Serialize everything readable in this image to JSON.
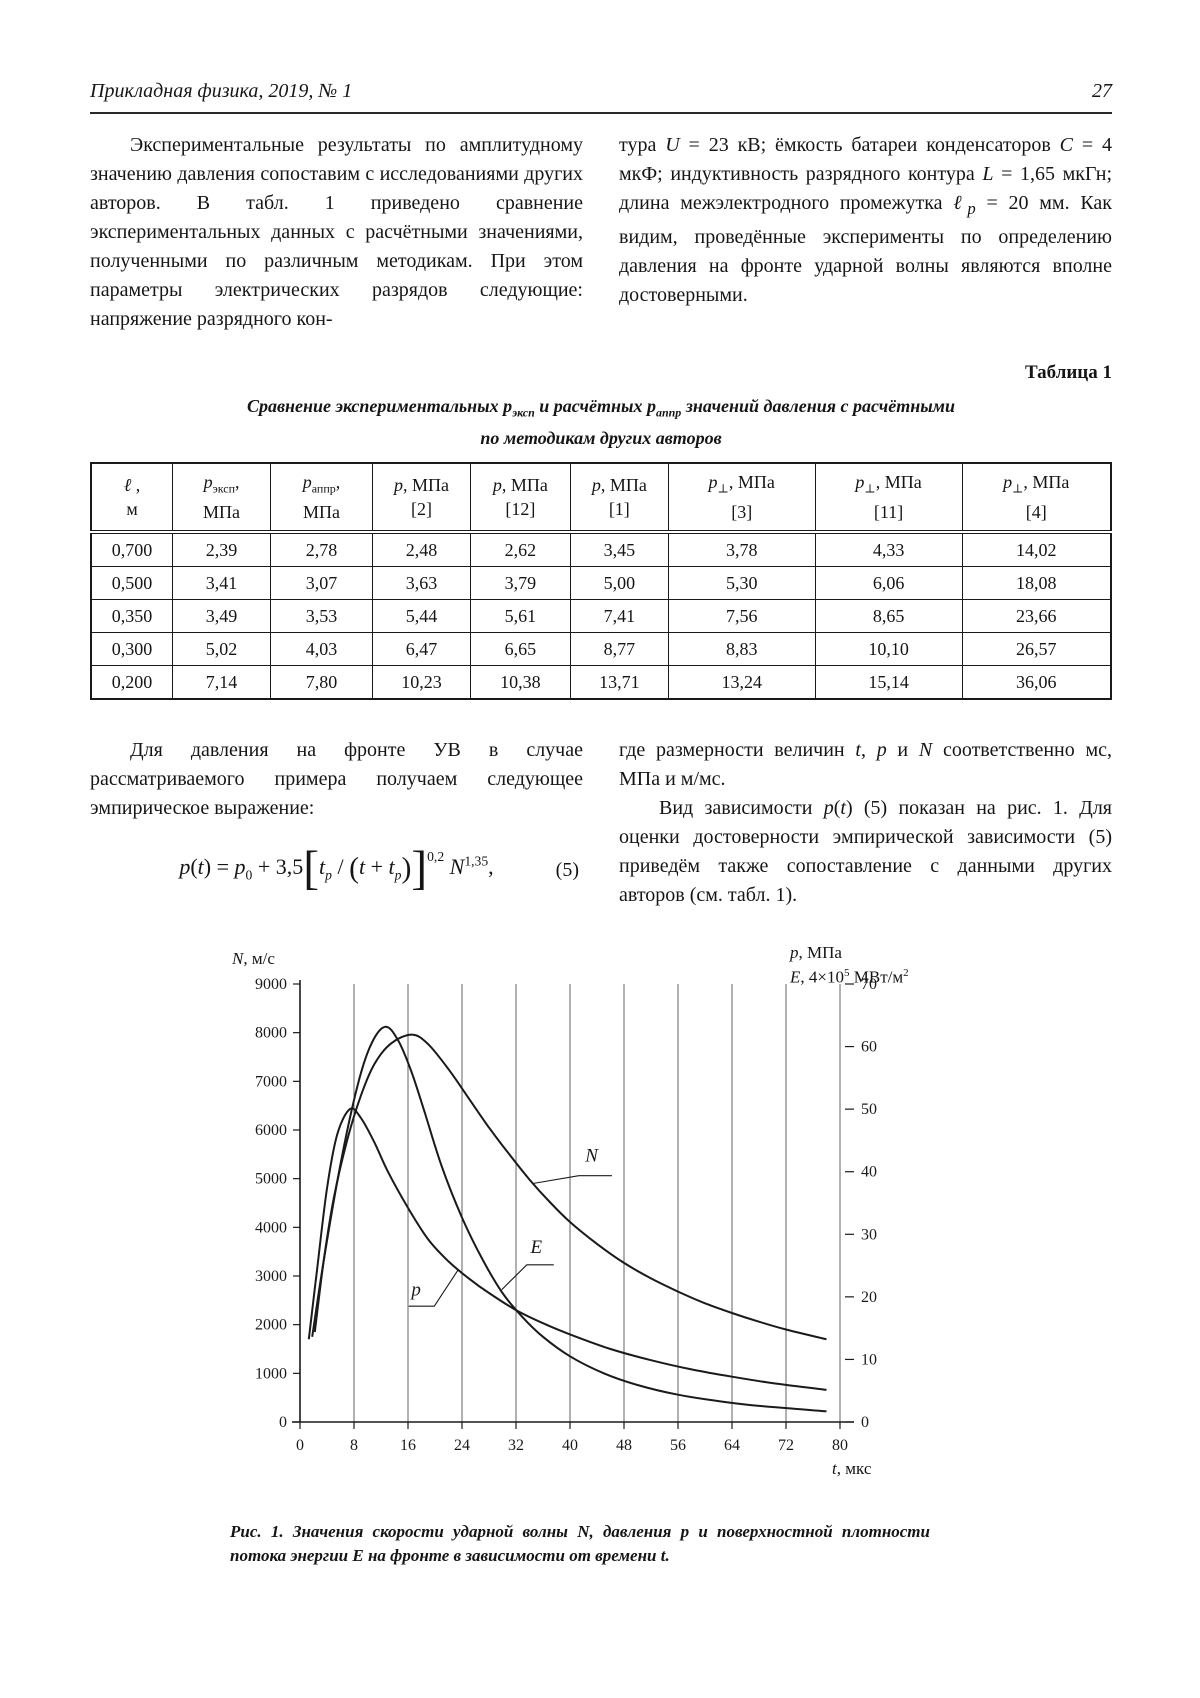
{
  "header": {
    "journal": "Прикладная физика, 2019, № 1",
    "page_number": "27"
  },
  "intro": {
    "left": [
      {
        "t": "Экспериментальные результаты по амплитудному значению давления сопоставим с исследованиями других авторов. В табл. 1 приведено сравнение экспериментальных данных с расчётными значениями, полученными по различным методикам. При этом параметры электрических разрядов следующие: напряжение разрядного кон-"
      }
    ],
    "right": [
      {
        "t": "тура "
      },
      {
        "t": "U",
        "i": 1
      },
      {
        "t": " = 23 кВ; ёмкость батареи конденсаторов "
      },
      {
        "t": "C",
        "i": 1
      },
      {
        "t": " = 4 мкФ; индуктивность разрядного контура "
      },
      {
        "t": "L",
        "i": 1
      },
      {
        "t": " = 1,65 мкГн; длина межэлектродного промежутка "
      },
      {
        "t": "ℓ",
        "i": 1
      },
      {
        "t": "p",
        "sub": 1,
        "i": 1
      },
      {
        "t": " = 20 мм. Как видим, проведённые эксперименты по определению давления на фронте ударной волны являются вполне достоверными."
      }
    ]
  },
  "table": {
    "label": "Таблица 1",
    "caption_line1": [
      {
        "t": "Сравнение экспериментальных "
      },
      {
        "t": "p"
      },
      {
        "t": "эксп",
        "sub": 1
      },
      {
        "t": " и расчётных "
      },
      {
        "t": "p"
      },
      {
        "t": "аппр",
        "sub": 1
      },
      {
        "t": " значений давления с расчётными"
      }
    ],
    "caption_line2": [
      {
        "t": "по методикам других авторов"
      }
    ],
    "headers": [
      {
        "top": [
          {
            "t": "ℓ",
            "i": 1
          },
          {
            "t": " ,"
          }
        ],
        "bottom": [
          {
            "t": "м"
          }
        ]
      },
      {
        "top": [
          {
            "t": "p",
            "i": 1
          },
          {
            "t": "эксп",
            "sub": 1
          },
          {
            "t": ","
          }
        ],
        "bottom": [
          {
            "t": "МПа"
          }
        ]
      },
      {
        "top": [
          {
            "t": "p",
            "i": 1
          },
          {
            "t": "аппр",
            "sub": 1
          },
          {
            "t": ","
          }
        ],
        "bottom": [
          {
            "t": "МПа"
          }
        ]
      },
      {
        "top": [
          {
            "t": "p",
            "i": 1
          },
          {
            "t": ", МПа"
          }
        ],
        "bottom": [
          {
            "t": "[2]"
          }
        ]
      },
      {
        "top": [
          {
            "t": "p",
            "i": 1
          },
          {
            "t": ", МПа"
          }
        ],
        "bottom": [
          {
            "t": "[12]"
          }
        ]
      },
      {
        "top": [
          {
            "t": "p",
            "i": 1
          },
          {
            "t": ", МПа"
          }
        ],
        "bottom": [
          {
            "t": "[1]"
          }
        ]
      },
      {
        "top": [
          {
            "t": "p",
            "i": 1
          },
          {
            "t": "⊥",
            "sub": 1
          },
          {
            "t": ", МПа"
          }
        ],
        "bottom": [
          {
            "t": "[3]"
          }
        ]
      },
      {
        "top": [
          {
            "t": "p",
            "i": 1
          },
          {
            "t": "⊥",
            "sub": 1
          },
          {
            "t": ", МПа"
          }
        ],
        "bottom": [
          {
            "t": "[11]"
          }
        ]
      },
      {
        "top": [
          {
            "t": "p",
            "i": 1
          },
          {
            "t": "⊥",
            "sub": 1
          },
          {
            "t": ", МПа"
          }
        ],
        "bottom": [
          {
            "t": "[4]"
          }
        ]
      }
    ],
    "rows": [
      [
        "0,700",
        "2,39",
        "2,78",
        "2,48",
        "2,62",
        "3,45",
        "3,78",
        "4,33",
        "14,02"
      ],
      [
        "0,500",
        "3,41",
        "3,07",
        "3,63",
        "3,79",
        "5,00",
        "5,30",
        "6,06",
        "18,08"
      ],
      [
        "0,350",
        "3,49",
        "3,53",
        "5,44",
        "5,61",
        "7,41",
        "7,56",
        "8,65",
        "23,66"
      ],
      [
        "0,300",
        "5,02",
        "4,03",
        "6,47",
        "6,65",
        "8,77",
        "8,83",
        "10,10",
        "26,57"
      ],
      [
        "0,200",
        "7,14",
        "7,80",
        "10,23",
        "10,38",
        "13,71",
        "13,24",
        "15,14",
        "36,06"
      ]
    ]
  },
  "mid": {
    "left": [
      {
        "t": "Для давления на фронте УВ в случае рассматриваемого примера получаем следующее эмпирическое выражение:"
      }
    ],
    "right1": [
      {
        "t": "где размерности величин "
      },
      {
        "t": "t",
        "i": 1
      },
      {
        "t": ", "
      },
      {
        "t": "p",
        "i": 1
      },
      {
        "t": " и "
      },
      {
        "t": "N",
        "i": 1
      },
      {
        "t": " соответственно мс, МПа и м/мс."
      }
    ],
    "right2": [
      {
        "t": "Вид зависимости "
      },
      {
        "t": "p",
        "i": 1
      },
      {
        "t": "("
      },
      {
        "t": "t",
        "i": 1
      },
      {
        "t": ") (5) показан на рис. 1. Для оценки достоверности эмпирической зависимости (5) приведём также сопоставление с данными других авторов (см. табл. 1)."
      }
    ]
  },
  "equation": {
    "runs": [
      {
        "t": "p",
        "i": 1
      },
      {
        "t": "("
      },
      {
        "t": "t",
        "i": 1
      },
      {
        "t": ") = "
      },
      {
        "t": "p",
        "i": 1
      },
      {
        "t": "0",
        "sub": 1
      },
      {
        "t": " + 3,5"
      },
      {
        "t": "[",
        "big": 1
      },
      {
        "t": "t",
        "i": 1
      },
      {
        "t": "p",
        "sub": 1,
        "i": 1
      },
      {
        "t": " / "
      },
      {
        "t": "(",
        "med": 1
      },
      {
        "t": "t",
        "i": 1
      },
      {
        "t": " + "
      },
      {
        "t": "t",
        "i": 1
      },
      {
        "t": "p",
        "sub": 1,
        "i": 1
      },
      {
        "t": ")",
        "med": 1
      },
      {
        "t": "]",
        "big": 1
      },
      {
        "t": "0,2",
        "hisup": 1
      },
      {
        "t": " N",
        "i": 1
      },
      {
        "t": "1,35",
        "sup": 1
      },
      {
        "t": ","
      }
    ],
    "number": "(5)"
  },
  "chart_data": {
    "type": "line",
    "stroke": "#1a1a1a",
    "left_axis": {
      "title": [
        {
          "t": "N",
          "i": 1
        },
        {
          "t": ", м/с"
        }
      ],
      "min": 0,
      "max": 9000,
      "step": 1000
    },
    "right_axis": {
      "title1": [
        {
          "t": "p",
          "i": 1
        },
        {
          "t": ", МПа"
        }
      ],
      "title2": [
        {
          "t": "E",
          "i": 1
        },
        {
          "t": ", 4×10"
        },
        {
          "t": "5",
          "sup": 1
        },
        {
          "t": " МВт/м"
        },
        {
          "t": "2",
          "sup": 1
        }
      ],
      "min": 0,
      "max": 70,
      "step": 10
    },
    "x_axis": {
      "title": [
        {
          "t": "t",
          "i": 1
        },
        {
          "t": ", мкс"
        }
      ],
      "min": 0,
      "max": 80,
      "step": 8
    },
    "series": [
      {
        "name": "p",
        "points": [
          [
            1.3,
            1700
          ],
          [
            2.5,
            3100
          ],
          [
            4,
            4800
          ],
          [
            5.5,
            5900
          ],
          [
            7.4,
            6430
          ],
          [
            9,
            6250
          ],
          [
            11,
            5750
          ],
          [
            13,
            5150
          ],
          [
            16,
            4400
          ],
          [
            19,
            3750
          ],
          [
            22,
            3300
          ],
          [
            25,
            2950
          ],
          [
            28,
            2650
          ],
          [
            32,
            2300
          ],
          [
            36,
            2030
          ],
          [
            40,
            1800
          ],
          [
            46,
            1500
          ],
          [
            52,
            1270
          ],
          [
            58,
            1080
          ],
          [
            64,
            930
          ],
          [
            70,
            800
          ],
          [
            78,
            660
          ]
        ]
      },
      {
        "name": "E",
        "points": [
          [
            1.8,
            1750
          ],
          [
            3.5,
            3300
          ],
          [
            6,
            5300
          ],
          [
            8.5,
            6900
          ],
          [
            10.5,
            7750
          ],
          [
            12.6,
            8120
          ],
          [
            14.5,
            7850
          ],
          [
            16.5,
            7200
          ],
          [
            18.5,
            6350
          ],
          [
            21,
            5250
          ],
          [
            24,
            4200
          ],
          [
            27,
            3350
          ],
          [
            30,
            2650
          ],
          [
            33,
            2150
          ],
          [
            36,
            1750
          ],
          [
            40,
            1350
          ],
          [
            45,
            1000
          ],
          [
            50,
            760
          ],
          [
            56,
            560
          ],
          [
            62,
            430
          ],
          [
            68,
            330
          ],
          [
            78,
            220
          ]
        ]
      },
      {
        "name": "N",
        "points": [
          [
            2.2,
            1850
          ],
          [
            3.5,
            3300
          ],
          [
            5,
            4600
          ],
          [
            7,
            5800
          ],
          [
            9,
            6700
          ],
          [
            11,
            7350
          ],
          [
            13.5,
            7780
          ],
          [
            16.6,
            7960
          ],
          [
            19,
            7760
          ],
          [
            22,
            7250
          ],
          [
            25,
            6650
          ],
          [
            28,
            6050
          ],
          [
            31,
            5500
          ],
          [
            34,
            4980
          ],
          [
            37,
            4520
          ],
          [
            40,
            4110
          ],
          [
            44,
            3660
          ],
          [
            48,
            3270
          ],
          [
            52,
            2950
          ],
          [
            56,
            2680
          ],
          [
            60,
            2440
          ],
          [
            64,
            2240
          ],
          [
            68,
            2060
          ],
          [
            72,
            1900
          ],
          [
            78,
            1700
          ]
        ]
      }
    ],
    "labels": [
      {
        "text": "N",
        "x": 43.2,
        "y": 5480
      },
      {
        "text": "E",
        "x": 35.0,
        "y": 3600
      },
      {
        "text": "p",
        "x": 17.2,
        "y": 2720
      }
    ],
    "leaders": [
      [
        [
          46.2,
          5060
        ],
        [
          41.3,
          5060
        ],
        [
          34.5,
          4900
        ]
      ],
      [
        [
          37.6,
          3230
        ],
        [
          33.6,
          3230
        ],
        [
          29.9,
          2720
        ]
      ],
      [
        [
          16.1,
          2380
        ],
        [
          19.9,
          2380
        ],
        [
          23.4,
          3120
        ]
      ]
    ]
  },
  "figure": {
    "caption": [
      {
        "t": "Рис. 1. Значения скорости ударной волны "
      },
      {
        "t": "N",
        "i": 1
      },
      {
        "t": ", давления "
      },
      {
        "t": "p",
        "i": 1
      },
      {
        "t": " и поверхностной плотности потока энергии "
      },
      {
        "t": "E",
        "i": 1
      },
      {
        "t": " на фронте в зависимости от времени "
      },
      {
        "t": "t",
        "i": 1
      },
      {
        "t": "."
      }
    ]
  }
}
